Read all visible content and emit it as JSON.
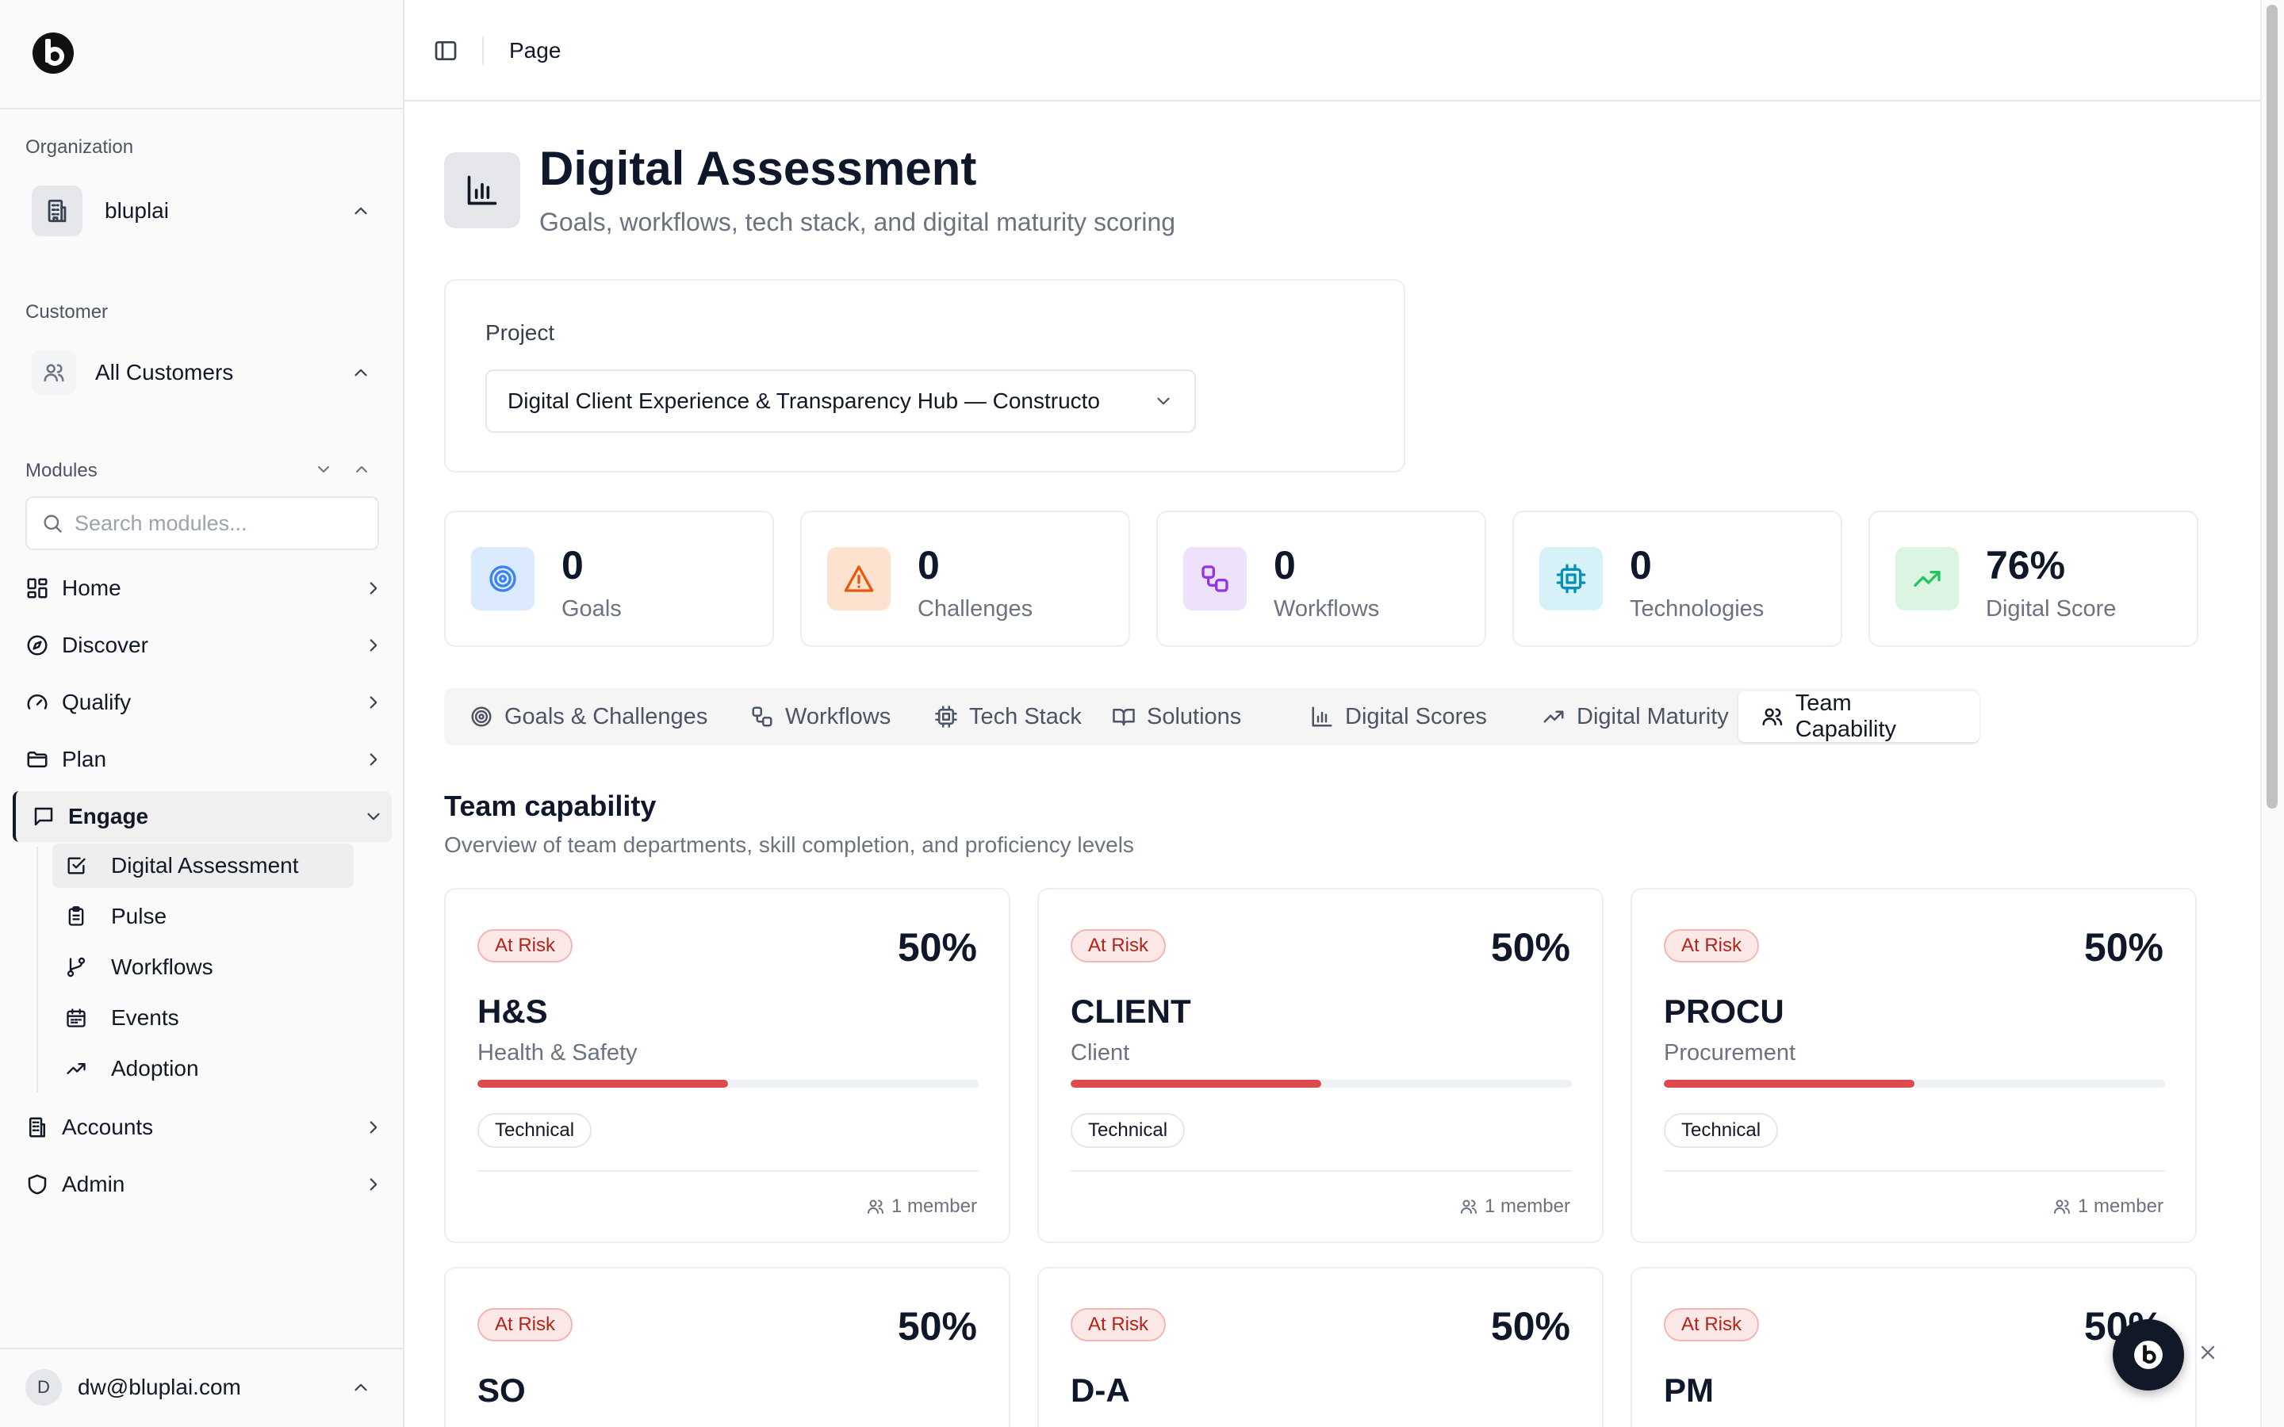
{
  "sidebar": {
    "org_label": "Organization",
    "org_name": "bluplai",
    "customer_label": "Customer",
    "customer_name": "All Customers",
    "modules_label": "Modules",
    "search_placeholder": "Search modules...",
    "nav": [
      {
        "label": "Home",
        "icon": "grid-icon"
      },
      {
        "label": "Discover",
        "icon": "compass-icon"
      },
      {
        "label": "Qualify",
        "icon": "gauge-icon"
      },
      {
        "label": "Plan",
        "icon": "folder-icon"
      },
      {
        "label": "Engage",
        "icon": "message-square-icon"
      },
      {
        "label": "Accounts",
        "icon": "building-icon"
      },
      {
        "label": "Admin",
        "icon": "shield-icon"
      }
    ],
    "engage_sub": [
      {
        "label": "Digital Assessment",
        "icon": "check-square-icon"
      },
      {
        "label": "Pulse",
        "icon": "clipboard-icon"
      },
      {
        "label": "Workflows",
        "icon": "git-branch-icon"
      },
      {
        "label": "Events",
        "icon": "calendar-icon"
      },
      {
        "label": "Adoption",
        "icon": "trending-up-icon"
      }
    ],
    "user_initial": "D",
    "user_email": "dw@bluplai.com"
  },
  "header": {
    "breadcrumb": "Page"
  },
  "page": {
    "title": "Digital Assessment",
    "subtitle": "Goals, workflows, tech stack, and digital maturity scoring"
  },
  "project": {
    "label": "Project",
    "selected": "Digital Client Experience & Transparency Hub — Constructo"
  },
  "stats": [
    {
      "value": "0",
      "label": "Goals",
      "color": "#3b82f6",
      "bg": "#dbeafe",
      "icon": "target-icon"
    },
    {
      "value": "0",
      "label": "Challenges",
      "color": "#ea580c",
      "bg": "#fde3cf",
      "icon": "alert-triangle-icon"
    },
    {
      "value": "0",
      "label": "Workflows",
      "color": "#9333ea",
      "bg": "#ede1fb",
      "icon": "workflow-icon"
    },
    {
      "value": "0",
      "label": "Technologies",
      "color": "#0891b2",
      "bg": "#d6f1f7",
      "icon": "cpu-icon"
    },
    {
      "value": "76%",
      "label": "Digital Score",
      "color": "#22c55e",
      "bg": "#dcf5e3",
      "icon": "trending-up-icon"
    }
  ],
  "tabs": [
    {
      "label": "Goals & Challenges",
      "icon": "target-icon"
    },
    {
      "label": "Workflows",
      "icon": "workflow-icon"
    },
    {
      "label": "Tech Stack",
      "icon": "cpu-icon"
    },
    {
      "label": "Solutions",
      "icon": "book-open-icon"
    },
    {
      "label": "Digital Scores",
      "icon": "bar-chart-icon"
    },
    {
      "label": "Digital Maturity",
      "icon": "trending-up-icon"
    },
    {
      "label": "Team Capability",
      "icon": "users-icon",
      "active": true
    }
  ],
  "section": {
    "title": "Team capability",
    "subtitle": "Overview of team departments, skill completion, and proficiency levels"
  },
  "departments": [
    {
      "status": "At Risk",
      "percent": "50%",
      "progress": 0.5,
      "code": "H&S",
      "name": "Health & Safety",
      "tag": "Technical",
      "members": "1 member"
    },
    {
      "status": "At Risk",
      "percent": "50%",
      "progress": 0.5,
      "code": "CLIENT",
      "name": "Client",
      "tag": "Technical",
      "members": "1 member"
    },
    {
      "status": "At Risk",
      "percent": "50%",
      "progress": 0.5,
      "code": "PROCU",
      "name": "Procurement",
      "tag": "Technical",
      "members": "1 member"
    },
    {
      "status": "At Risk",
      "percent": "50%",
      "progress": 0.5,
      "code": "SO",
      "name": "",
      "tag": "",
      "members": ""
    },
    {
      "status": "At Risk",
      "percent": "50%",
      "progress": 0.5,
      "code": "D-A",
      "name": "",
      "tag": "",
      "members": ""
    },
    {
      "status": "At Risk",
      "percent": "50%",
      "progress": 0.5,
      "code": "PM",
      "name": "",
      "tag": "",
      "members": ""
    }
  ]
}
